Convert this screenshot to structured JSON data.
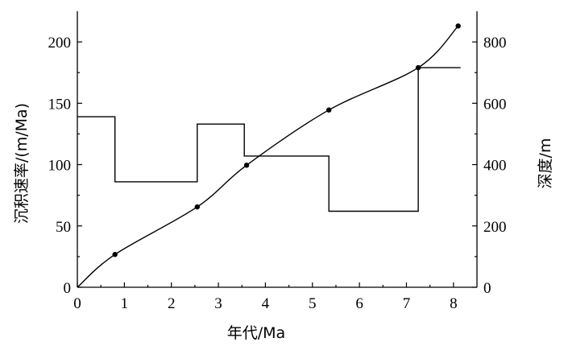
{
  "chart_data": {
    "type": "line",
    "xlabel": "年代/Ma",
    "ylabel_left": "沉积速率/(m/Ma)",
    "ylabel_right": "深度/m",
    "xlim": [
      0,
      8.5
    ],
    "ylim_left": [
      0,
      225
    ],
    "ylim_right": [
      0,
      900
    ],
    "x_ticks": [
      0,
      1,
      2,
      3,
      4,
      5,
      6,
      7,
      8
    ],
    "y_left_ticks": [
      0,
      50,
      100,
      150,
      200
    ],
    "y_right_ticks": [
      0,
      200,
      400,
      600,
      800
    ],
    "grid": false,
    "series": [
      {
        "axis": "left",
        "style": "step",
        "x": [
          0,
          0.8,
          0.8,
          2.55,
          2.55,
          3.55,
          3.55,
          5.35,
          5.35,
          7.25,
          7.25,
          8.15
        ],
        "y": [
          139,
          139,
          86,
          86,
          133,
          133,
          107,
          107,
          62,
          62,
          179,
          179
        ]
      },
      {
        "axis": "right",
        "style": "smooth-markers",
        "x": [
          0,
          0.8,
          2.55,
          3.6,
          5.35,
          7.25,
          8.1
        ],
        "y": [
          0,
          107,
          262,
          398,
          578,
          716,
          852
        ]
      }
    ]
  }
}
